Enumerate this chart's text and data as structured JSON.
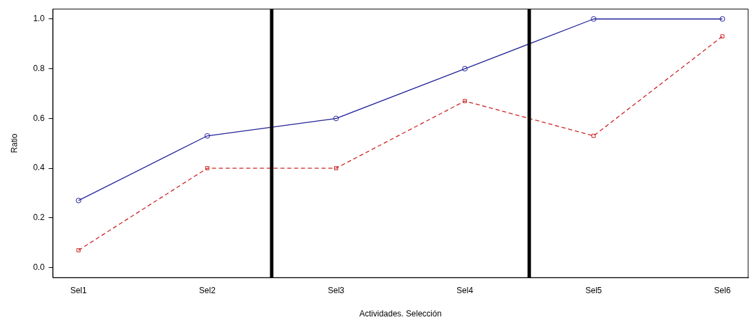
{
  "chart_data": {
    "type": "line",
    "xlabel": "Actividades. Selección",
    "ylabel": "Ratio",
    "categories": [
      "Sel1",
      "Sel2",
      "Sel3",
      "Sel4",
      "Sel5",
      "Sel6"
    ],
    "ylim": [
      -0.04,
      1.04
    ],
    "yticks": [
      {
        "value": 0,
        "label": "0.0"
      },
      {
        "value": 0.2,
        "label": "0.2"
      },
      {
        "value": 0.4,
        "label": "0.4"
      },
      {
        "value": 0.6,
        "label": "0.6"
      },
      {
        "value": 0.8,
        "label": "0.8"
      },
      {
        "value": 1,
        "label": "1.0"
      }
    ],
    "series": [
      {
        "color": "#1f1f99",
        "marker": "circle",
        "line_style": "solid",
        "values": [
          0.27,
          0.53,
          0.6,
          0.8,
          1.0,
          1.0
        ]
      },
      {
        "color": "#cc2222",
        "marker": "square",
        "line_style": "dashed",
        "values": [
          0.07,
          0.4,
          0.4,
          0.67,
          0.53,
          0.93
        ]
      }
    ],
    "grid": false,
    "legend": false
  }
}
